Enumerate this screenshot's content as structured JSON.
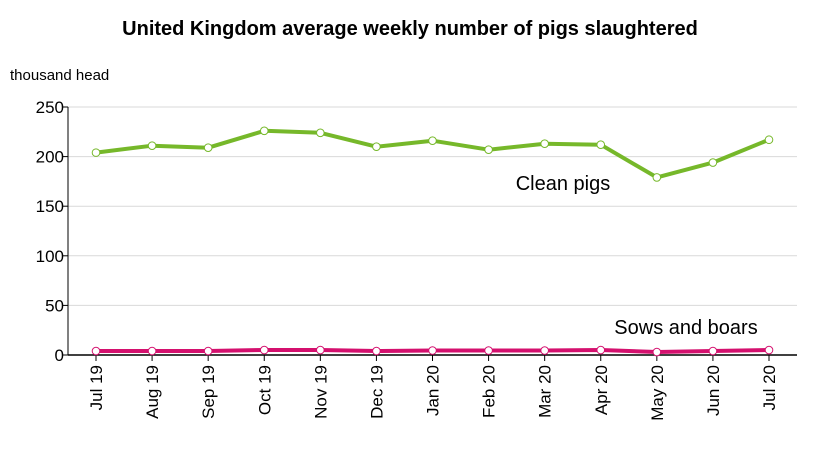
{
  "chart_data": {
    "type": "line",
    "title": "United Kingdom average weekly number of pigs slaughtered",
    "ylabel": "thousand head",
    "xlabel": "",
    "categories": [
      "Jul 19",
      "Aug 19",
      "Sep 19",
      "Oct 19",
      "Nov 19",
      "Dec 19",
      "Jan 20",
      "Feb 20",
      "Mar 20",
      "Apr 20",
      "May 20",
      "Jun 20",
      "Jul 20"
    ],
    "ylim": [
      0,
      250
    ],
    "yticks": [
      "0",
      "50",
      "100",
      "150",
      "200",
      "250"
    ],
    "grid": true,
    "legend": "none",
    "series": [
      {
        "name": "Clean pigs",
        "color": "#76b82a",
        "values": [
          204,
          211,
          209,
          226,
          224,
          210,
          216,
          207,
          213,
          212,
          179,
          194,
          217
        ]
      },
      {
        "name": "Sows and boars",
        "color": "#d4106e",
        "values": [
          4,
          4,
          4,
          5,
          5,
          4,
          4.5,
          4.5,
          4.5,
          5,
          3,
          4,
          5
        ]
      }
    ]
  }
}
